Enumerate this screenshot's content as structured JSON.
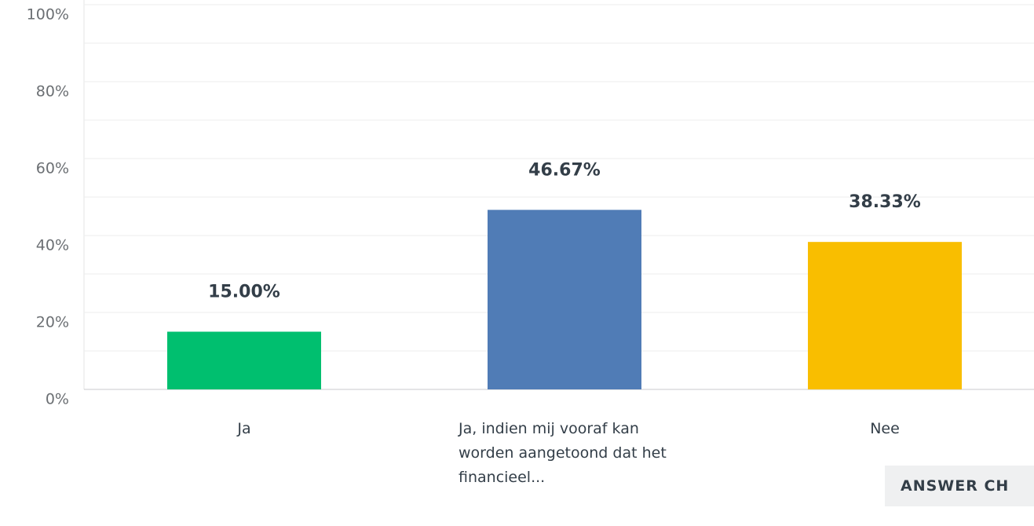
{
  "chart_data": {
    "type": "bar",
    "categories": [
      "Ja",
      "Ja, indien mij vooraf kan worden aangetoond dat het financieel...",
      "Nee"
    ],
    "values": [
      15,
      46.67,
      38.33
    ],
    "value_labels": [
      "15.00%",
      "46.67%",
      "38.33%"
    ],
    "colors": [
      "#00bf6f",
      "#507cb6",
      "#f9be00"
    ],
    "ylim": [
      0,
      100
    ],
    "yticks": [
      {
        "value": 0,
        "label": "0%"
      },
      {
        "value": 20,
        "label": "20%"
      },
      {
        "value": 40,
        "label": "40%"
      },
      {
        "value": 60,
        "label": "60%"
      },
      {
        "value": 80,
        "label": "80%"
      },
      {
        "value": 100,
        "label": "100%"
      }
    ],
    "minor_yticks": [
      10,
      30,
      50,
      70,
      90
    ],
    "grid": true
  },
  "button": {
    "label": "ANSWER CH"
  }
}
